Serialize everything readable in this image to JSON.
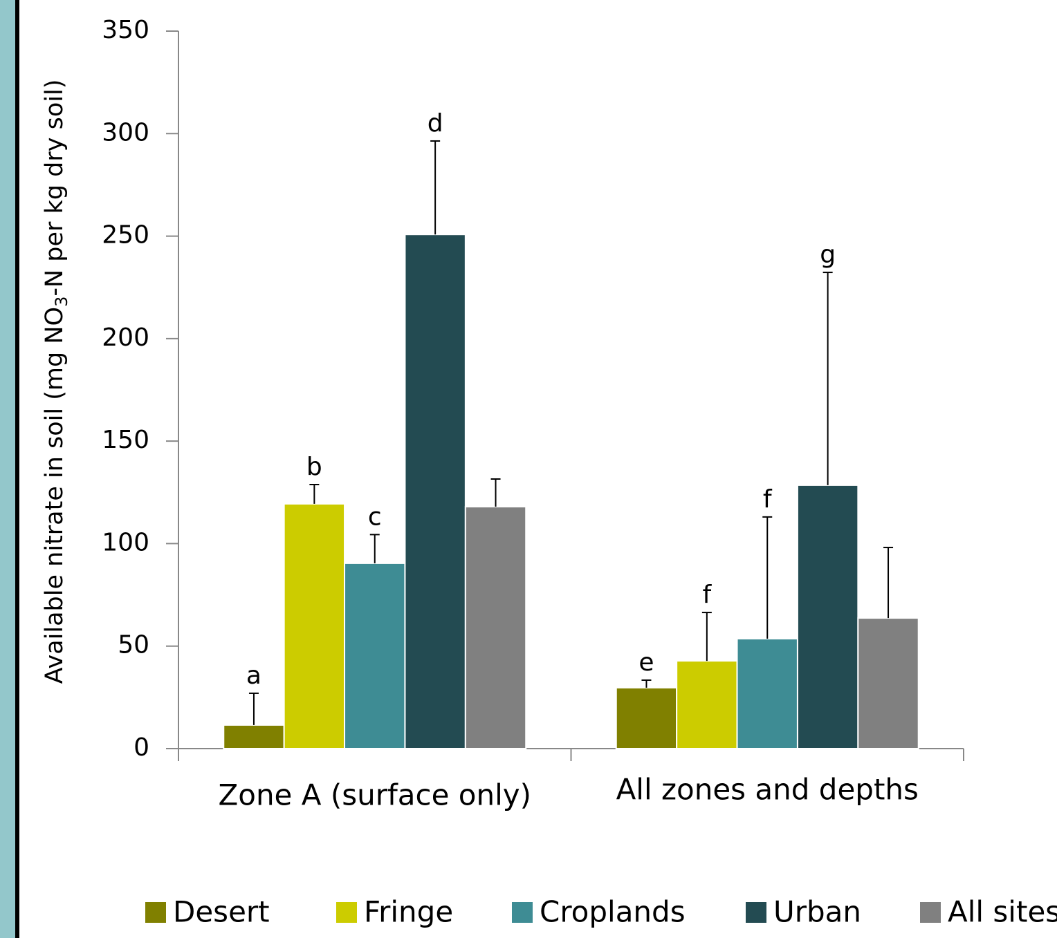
{
  "chart_data": {
    "type": "bar",
    "ylabel": [
      "Available nitrate in soil (mg NO",
      "3",
      "-N per kg dry soil)"
    ],
    "categories": [
      "Zone A (surface only)",
      "All zones and depths"
    ],
    "ylim": [
      0,
      350
    ],
    "yticks": [
      0,
      50,
      100,
      150,
      200,
      250,
      300,
      350
    ],
    "legend": "bottom",
    "series": [
      {
        "name": "Desert",
        "color": "#808000",
        "values": [
          11.5,
          29.7
        ],
        "errors": [
          15.5,
          3.7
        ],
        "labels": [
          "a",
          "e"
        ]
      },
      {
        "name": "Fringe",
        "color": "#cccc00",
        "values": [
          119.4,
          42.8
        ],
        "errors": [
          9.4,
          23.6
        ],
        "labels": [
          "b",
          "f"
        ]
      },
      {
        "name": "Croplands",
        "color": "#3e8c94",
        "values": [
          90.4,
          53.6
        ],
        "errors": [
          14,
          59.4
        ],
        "labels": [
          "c",
          "f"
        ]
      },
      {
        "name": "Urban",
        "color": "#234b52",
        "values": [
          250.8,
          128.5
        ],
        "errors": [
          45.6,
          103.8
        ],
        "labels": [
          "d",
          "g"
        ]
      },
      {
        "name": "All sites",
        "color": "#808080",
        "values": [
          118,
          63.7
        ],
        "errors": [
          13.5,
          34.4
        ],
        "labels": [
          null,
          null
        ]
      }
    ]
  }
}
